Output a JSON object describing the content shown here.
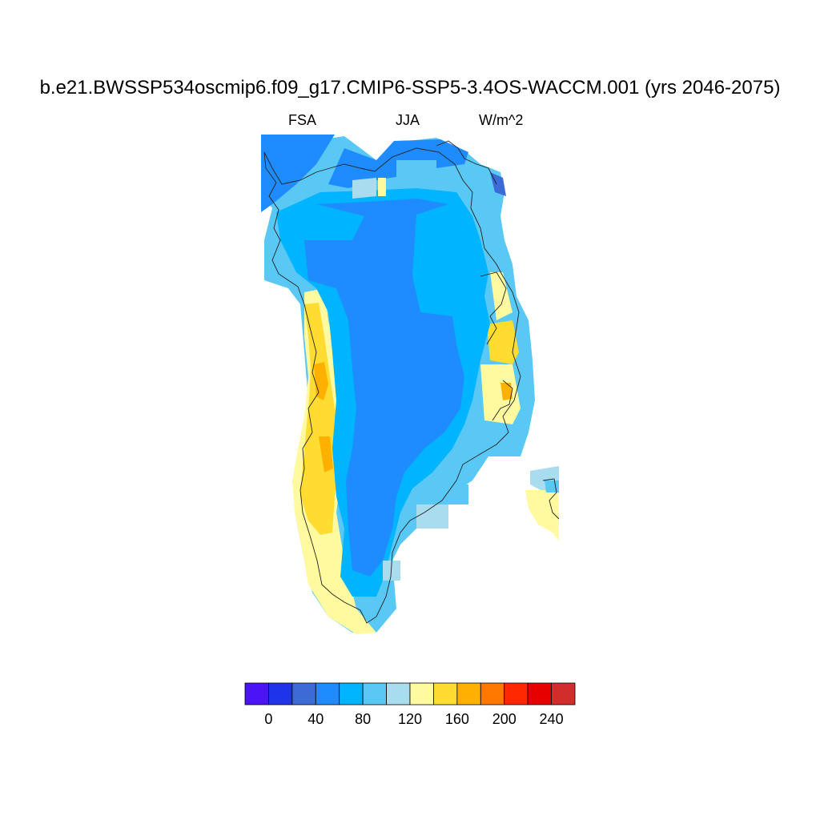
{
  "title": "b.e21.BWSSP534oscmip6.f09_g17.CMIP6-SSP5-3.4OS-WACCM.001 (yrs 2046-2075)",
  "subtitle": {
    "left": "FSA",
    "center": "JJA",
    "right": "W/m^2"
  },
  "colorbar": {
    "colors": [
      "#4a14f5",
      "#1f34e8",
      "#3c6ad6",
      "#1e8cff",
      "#00b4ff",
      "#5ac8f5",
      "#aadcf0",
      "#fff9a0",
      "#ffdc32",
      "#ffb000",
      "#ff7800",
      "#ff2800",
      "#e60000",
      "#d22d2d"
    ],
    "tick_labels": [
      "0",
      "40",
      "80",
      "120",
      "160",
      "200",
      "240"
    ]
  },
  "map_data": {
    "region": "Greenland",
    "field": "FSA",
    "season": "JJA",
    "units": "W/m^2",
    "interior_value_range": [
      40,
      60
    ],
    "coastal_value_range": [
      60,
      180
    ]
  }
}
